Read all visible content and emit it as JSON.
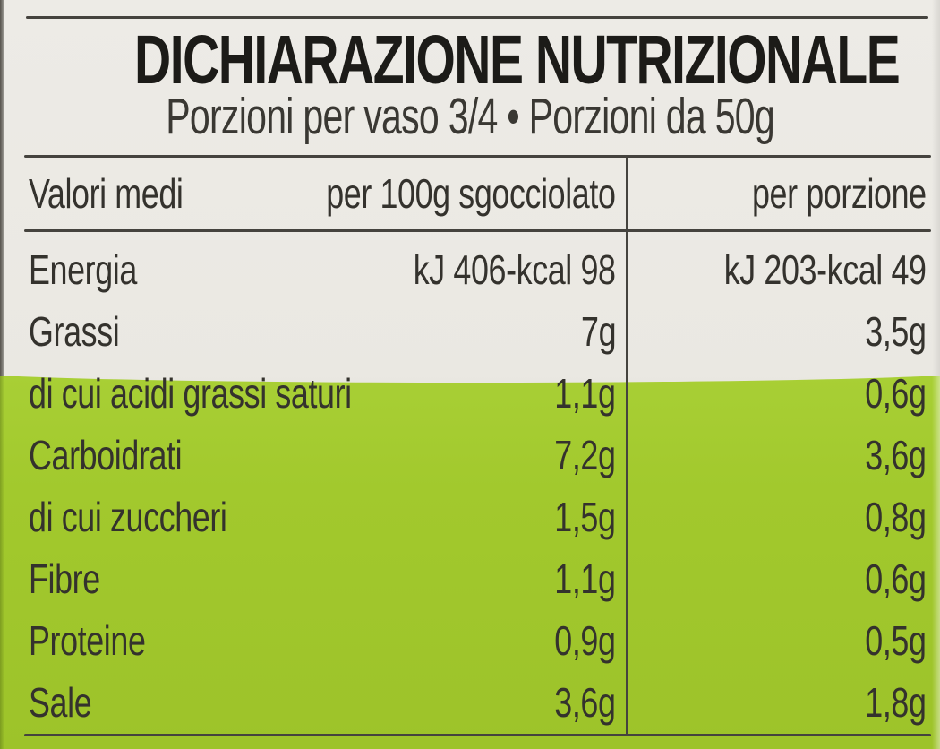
{
  "page": {
    "colors": {
      "paper": "#edebe6",
      "green": "#a2c92d",
      "ink": "#34322d",
      "rule": "#45433e"
    }
  },
  "header": {
    "title": "DICHIARAZIONE NUTRIZIONALE",
    "subtitle": "Porzioni per vaso 3/4 • Porzioni da 50g"
  },
  "table": {
    "columns": {
      "left": "Valori medi",
      "per_100g": "per 100g sgocciolato",
      "per_portion": "per porzione"
    },
    "rows": [
      {
        "name": "Energia",
        "per_100g": "kJ 406-kcal 98",
        "per_portion": "kJ 203-kcal 49"
      },
      {
        "name": "Grassi",
        "per_100g": "7g",
        "per_portion": "3,5g"
      },
      {
        "name": "di cui acidi grassi saturi",
        "per_100g": "1,1g",
        "per_portion": "0,6g"
      },
      {
        "name": "Carboidrati",
        "per_100g": "7,2g",
        "per_portion": "3,6g"
      },
      {
        "name": "di cui zuccheri",
        "per_100g": "1,5g",
        "per_portion": "0,8g"
      },
      {
        "name": "Fibre",
        "per_100g": "1,1g",
        "per_portion": "0,6g"
      },
      {
        "name": "Proteine",
        "per_100g": "0,9g",
        "per_portion": "0,5g"
      },
      {
        "name": "Sale",
        "per_100g": "3,6g",
        "per_portion": "1,8g"
      }
    ]
  }
}
